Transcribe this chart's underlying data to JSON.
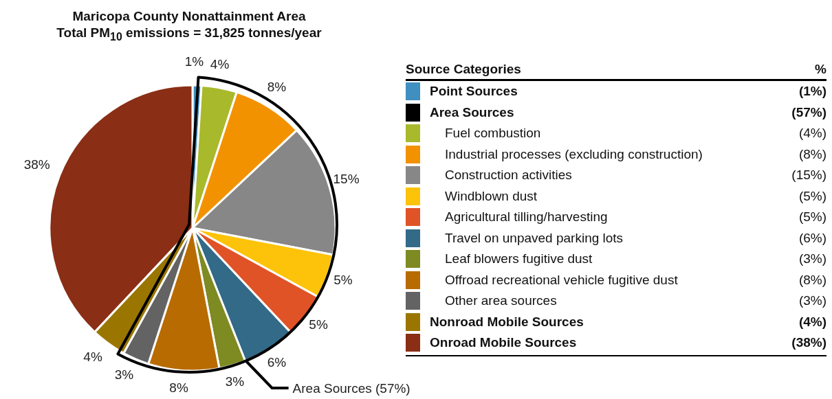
{
  "chart_data": {
    "type": "pie",
    "title": "Maricopa County Nonattainment Area",
    "subtitle": "Total PM$_{10}$ emissions = 31,825 tonnes/year",
    "categories": [
      "Point Sources",
      "Fuel combustion",
      "Industrial processes (excluding construction)",
      "Construction activities",
      "Windblown dust",
      "Agricultural tilling/harvesting",
      "Travel on unpaved parking lots",
      "Leaf blowers fugitive dust",
      "Offroad recreational vehicle fugitive dust",
      "Other area sources",
      "Nonroad Mobile Sources",
      "Onroad Mobile Sources"
    ],
    "values": [
      1,
      4,
      8,
      15,
      5,
      5,
      6,
      3,
      8,
      3,
      4,
      38
    ],
    "value_labels": [
      "1%",
      "4%",
      "8%",
      "15%",
      "5%",
      "5%",
      "6%",
      "3%",
      "8%",
      "3%",
      "4%",
      "38%"
    ],
    "colors": [
      "#3f8fc0",
      "#a8b92c",
      "#f39200",
      "#878787",
      "#fdc30a",
      "#e05327",
      "#326a88",
      "#7e8a22",
      "#b86b00",
      "#636363",
      "#9a7600",
      "#8a2e15"
    ],
    "legend": "right",
    "legend_title": "Source Categories",
    "annotations": [
      "%",
      "Area Sources",
      "(57%)",
      "Area Sources (57%)",
      "(1%)",
      "(4%)",
      "(8%)",
      "(15%)",
      "(5%)",
      "(5%)",
      "(6%)",
      "(3%)",
      "(8%)",
      "(3%)",
      "(4%)",
      "(38%)"
    ]
  }
}
